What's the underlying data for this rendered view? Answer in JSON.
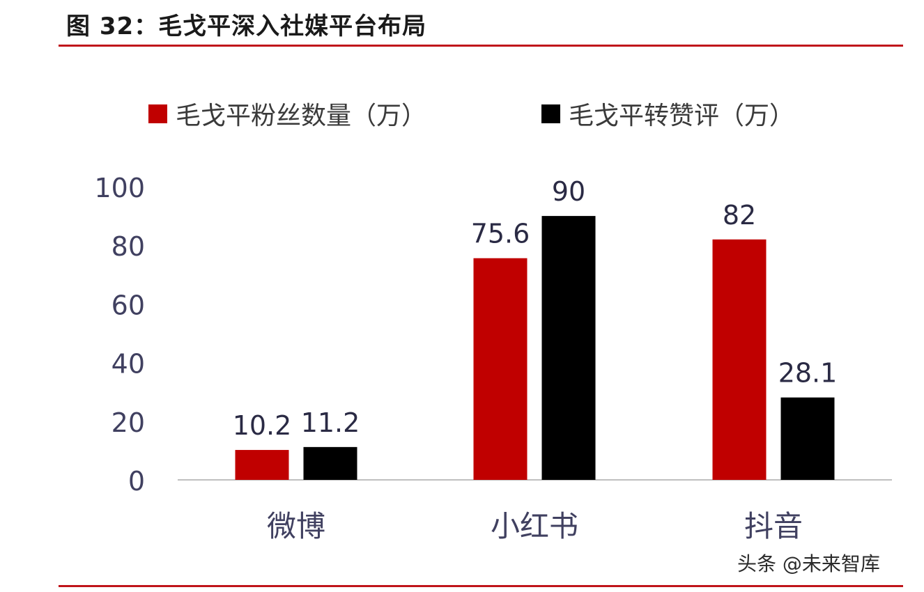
{
  "figure_title": "图 32：毛戈平深入社媒平台布局",
  "watermark": "头条 @未来智库",
  "chart_data": {
    "type": "bar",
    "categories": [
      "微博",
      "小红书",
      "抖音"
    ],
    "series": [
      {
        "name": "毛戈平粉丝数量（万）",
        "values": [
          10.2,
          75.6,
          82
        ],
        "labels": [
          "10.2",
          "75.6",
          "82"
        ],
        "color": "#c00000"
      },
      {
        "name": "毛戈平转赞评（万）",
        "values": [
          11.2,
          90,
          28.1
        ],
        "labels": [
          "11.2",
          "90",
          "28.1"
        ],
        "color": "#000000"
      }
    ],
    "yticks": [
      "0",
      "20",
      "40",
      "60",
      "80",
      "100"
    ],
    "ylim": [
      0,
      100
    ],
    "grid": false,
    "legend_position": "top"
  }
}
